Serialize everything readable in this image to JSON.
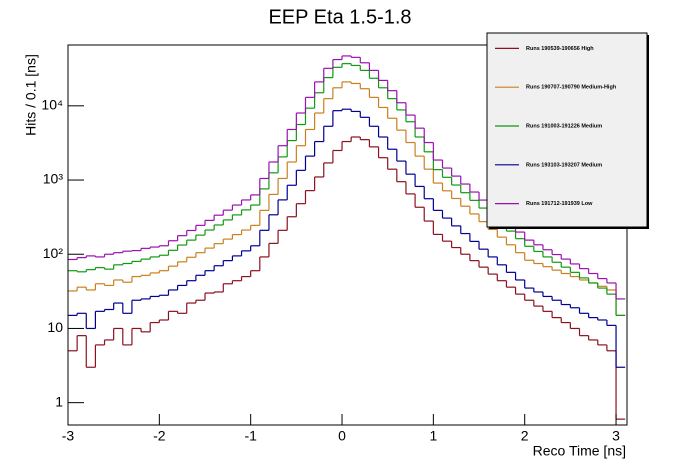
{
  "chart_data": {
    "type": "histogram",
    "title": "EEP Eta 1.5-1.8",
    "x_label": "Reco Time [ns]",
    "y_label": "Hits / 0.1 [ns]",
    "log_y": true,
    "legend": "top-right",
    "xlim": [
      -3,
      3.12
    ],
    "ylim": [
      0.5,
      66000
    ],
    "xticks": [
      -3,
      -2,
      -1,
      0,
      1,
      2,
      3
    ],
    "yticks": [
      1,
      10,
      {
        "value": 100,
        "label": "10²"
      },
      {
        "value": 1000,
        "label": "10³"
      },
      {
        "value": 10000,
        "label": "10⁴"
      }
    ],
    "bins": [
      -3,
      -2.9,
      -2.8,
      -2.7,
      -2.6,
      -2.5,
      -2.4,
      -2.3,
      -2.2,
      -2.1,
      -2,
      -1.9,
      -1.8,
      -1.7,
      -1.6,
      -1.5,
      -1.4,
      -1.3,
      -1.2,
      -1.1,
      -1,
      -0.9,
      -0.8,
      -0.7,
      -0.6,
      -0.5,
      -0.4,
      -0.3,
      -0.2,
      -0.1,
      0,
      0.1,
      0.2,
      0.3,
      0.4,
      0.5,
      0.6,
      0.7,
      0.8,
      0.9,
      1,
      1.1,
      1.2,
      1.3,
      1.4,
      1.5,
      1.6,
      1.7,
      1.8,
      1.9,
      2,
      2.1,
      2.2,
      2.3,
      2.4,
      2.5,
      2.6,
      2.7,
      2.8,
      2.9,
      3,
      3.1
    ],
    "series": [
      {
        "name": "Runs 190539-190656 High",
        "color": "#8b1020",
        "values": [
          5,
          8,
          3,
          6,
          7,
          10,
          6,
          10,
          9,
          12,
          13,
          17,
          16,
          22,
          24,
          30,
          31,
          40,
          44,
          50,
          60,
          92,
          140,
          210,
          320,
          480,
          720,
          1100,
          1700,
          2500,
          3300,
          3800,
          3500,
          2800,
          2000,
          1400,
          950,
          650,
          430,
          280,
          185,
          150,
          123,
          100,
          82,
          67,
          54,
          44,
          36,
          29,
          24,
          20,
          17,
          14,
          12,
          10,
          8,
          7,
          6,
          5,
          0.6
        ]
      },
      {
        "name": "Runs 190707-190790 Medium-High",
        "color": "#c8801e",
        "values": [
          32,
          36,
          33,
          40,
          38,
          45,
          42,
          50,
          52,
          56,
          60,
          69,
          79,
          91,
          105,
          121,
          139,
          160,
          184,
          212,
          245,
          390,
          640,
          1050,
          1750,
          2900,
          4800,
          8000,
          12500,
          17500,
          21000,
          20000,
          17000,
          13000,
          9500,
          6800,
          4700,
          3200,
          2100,
          1400,
          910,
          716,
          564,
          444,
          349,
          275,
          216,
          170,
          134,
          105,
          83,
          75,
          68,
          61,
          55,
          50,
          45,
          41,
          37,
          33,
          15
        ]
      },
      {
        "name": "Runs 191003-191226 Medium",
        "color": "#109a10",
        "values": [
          60,
          58,
          62,
          66,
          63,
          72,
          75,
          80,
          86,
          92,
          97,
          113,
          133,
          155,
          181,
          212,
          248,
          290,
          339,
          396,
          460,
          760,
          1250,
          2050,
          3400,
          5600,
          9300,
          15000,
          24000,
          33000,
          37000,
          35000,
          30000,
          23500,
          17500,
          12500,
          8800,
          6100,
          3800,
          2400,
          1380,
          1088,
          857,
          675,
          532,
          419,
          330,
          260,
          205,
          162,
          128,
          109,
          92,
          78,
          67,
          57,
          48,
          41,
          35,
          29,
          15
        ]
      },
      {
        "name": "Runs 193103-193207 Medium",
        "color": "#000090",
        "values": [
          15,
          16,
          10,
          17,
          18,
          22,
          16,
          24,
          25,
          27,
          28,
          33,
          38,
          44,
          52,
          60,
          70,
          82,
          95,
          111,
          130,
          210,
          340,
          540,
          850,
          1350,
          2100,
          3300,
          5300,
          8600,
          9000,
          8400,
          7000,
          5300,
          3800,
          2600,
          1800,
          1200,
          820,
          560,
          390,
          307,
          241,
          190,
          149,
          117,
          92,
          72,
          57,
          45,
          35,
          31,
          27,
          24,
          21,
          19,
          16,
          14,
          13,
          11,
          3
        ]
      },
      {
        "name": "Runs 191712-191939 Low",
        "color": "#9a10b0",
        "values": [
          85,
          90,
          95,
          92,
          100,
          105,
          110,
          112,
          120,
          125,
          130,
          152,
          178,
          209,
          245,
          286,
          336,
          393,
          460,
          539,
          630,
          1050,
          1750,
          2900,
          4800,
          8000,
          13000,
          21000,
          32000,
          42000,
          47000,
          45000,
          38000,
          30000,
          22000,
          16000,
          11000,
          7500,
          5000,
          3200,
          1860,
          1450,
          1130,
          883,
          689,
          537,
          419,
          327,
          255,
          199,
          155,
          134,
          115,
          99,
          86,
          74,
          64,
          55,
          47,
          41,
          25
        ]
      }
    ]
  }
}
